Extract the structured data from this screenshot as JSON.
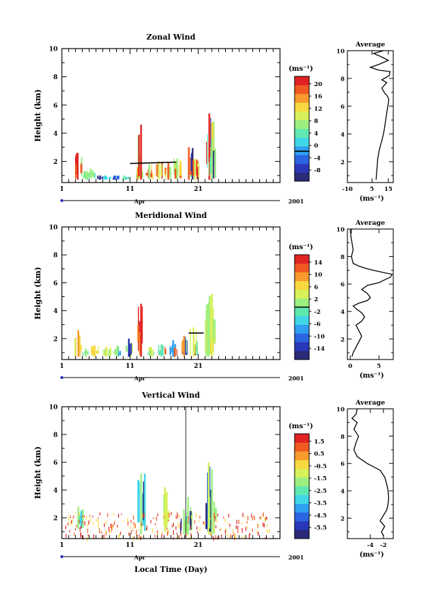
{
  "colors": {
    "colormap": [
      "#2a2a78",
      "#2838b8",
      "#2a64e0",
      "#2fa0f0",
      "#40d6e6",
      "#5fe8b0",
      "#9cf080",
      "#d8f05a",
      "#f8d840",
      "#f89a2e",
      "#f05a22",
      "#e02222"
    ],
    "axis": "#000000",
    "background": "#ffffff"
  },
  "footer": {
    "xlabel": "Local Time (Day)"
  },
  "chart_data": [
    {
      "type": "heatmap",
      "title": "Zonal Wind",
      "ylabel": "Height (km)",
      "ylim": [
        0.5,
        10
      ],
      "yticks": [
        "2",
        "4",
        "6",
        "8",
        "10"
      ],
      "ytick_values": [
        2,
        4,
        6,
        8,
        10
      ],
      "xlim": [
        1,
        33
      ],
      "xticks": [
        "1",
        "11",
        "21"
      ],
      "xtick_values": [
        1,
        11,
        21
      ],
      "month_label": "Apr",
      "year_label": "2001",
      "colorbar": {
        "unit": "(ms⁻¹)",
        "labels": [
          "20",
          "16",
          "12",
          "8",
          "4",
          "0",
          "-4",
          "-8"
        ],
        "black_line_at": 0
      },
      "events": [
        {
          "day": 3.3,
          "h": [
            0.7,
            2.6
          ],
          "v": [
            8,
            16,
            20
          ]
        },
        {
          "day": 4.5,
          "h": [
            0.7,
            1.3
          ],
          "v": [
            4,
            6
          ]
        },
        {
          "day": 5.2,
          "h": [
            0.8,
            1.5
          ],
          "v": [
            4,
            8
          ]
        },
        {
          "day": 6.6,
          "h": [
            0.7,
            1.0
          ],
          "v": [
            -4,
            -8
          ]
        },
        {
          "day": 7.4,
          "h": [
            0.7,
            1.0
          ],
          "v": [
            2
          ]
        },
        {
          "day": 8.8,
          "h": [
            0.7,
            1.0
          ],
          "v": [
            -6,
            -2
          ]
        },
        {
          "day": 10.2,
          "h": [
            0.7,
            1.0
          ],
          "v": [
            2,
            4
          ]
        },
        {
          "day": 12.1,
          "h": [
            0.7,
            1.6
          ],
          "v": [
            6,
            10,
            14
          ]
        },
        {
          "day": 12.6,
          "h": [
            0.7,
            4.6
          ],
          "v": [
            10,
            6,
            14,
            20
          ]
        },
        {
          "day": 13.8,
          "h": [
            0.7,
            1.8
          ],
          "v": [
            12,
            16,
            8
          ]
        },
        {
          "day": 15.2,
          "h": [
            0.7,
            2.0
          ],
          "v": [
            14,
            18,
            10
          ]
        },
        {
          "day": 16.6,
          "h": [
            0.7,
            1.9
          ],
          "v": [
            6,
            12,
            16
          ]
        },
        {
          "day": 17.9,
          "h": [
            0.7,
            2.2
          ],
          "v": [
            12,
            16,
            8
          ]
        },
        {
          "day": 19.6,
          "h": [
            0.7,
            3.0
          ],
          "v": [
            -8,
            -4,
            4,
            16
          ]
        },
        {
          "day": 20.5,
          "h": [
            0.7,
            2.2
          ],
          "v": [
            16,
            20,
            10
          ]
        },
        {
          "day": 22.6,
          "h": [
            0.7,
            5.4
          ],
          "v": [
            -4,
            4,
            8,
            12,
            16,
            20
          ]
        },
        {
          "day": 23.0,
          "h": [
            0.7,
            3.6
          ],
          "v": [
            -8,
            0,
            4,
            8
          ]
        }
      ],
      "black_lines": [
        {
          "x": [
            11,
            17.8
          ],
          "y": [
            1.85,
            1.95
          ]
        }
      ],
      "profile": {
        "title": "Average",
        "xlim": [
          -10,
          18
        ],
        "xticks": [
          "-10",
          "5",
          "15"
        ],
        "xtick_values": [
          -10,
          5,
          15
        ],
        "xlabel": "(ms⁻¹)",
        "x": [
          7.5,
          7.8,
          8.2,
          8.5,
          9.2,
          10.0,
          11.0,
          11.8,
          12.5,
          13.0,
          13.5,
          14.0,
          14.5,
          15.0,
          15.3,
          14.0,
          13.0,
          12.0,
          11.0,
          12.5,
          14.0,
          11.0,
          15.5,
          16.0,
          9.0,
          4.0,
          9.0,
          15.0,
          10.0,
          6.0,
          12.0
        ],
        "y": [
          0.7,
          1.2,
          1.7,
          2.2,
          2.7,
          3.1,
          3.5,
          3.9,
          4.3,
          4.7,
          5.1,
          5.5,
          5.9,
          6.2,
          6.5,
          6.8,
          6.9,
          7.1,
          7.3,
          7.5,
          7.7,
          7.9,
          8.2,
          8.5,
          8.6,
          8.8,
          9.0,
          9.3,
          9.6,
          9.8,
          10.0
        ]
      }
    },
    {
      "type": "heatmap",
      "title": "Meridional Wind",
      "ylabel": "Height (km)",
      "ylim": [
        0.5,
        10
      ],
      "yticks": [
        "2",
        "4",
        "6",
        "8",
        "10"
      ],
      "ytick_values": [
        2,
        4,
        6,
        8,
        10
      ],
      "xlim": [
        1,
        33
      ],
      "xticks": [
        "1",
        "11",
        "21"
      ],
      "xtick_values": [
        1,
        11,
        21
      ],
      "month_label": "Apr",
      "year_label": "2001",
      "colorbar": {
        "unit": "(ms⁻¹)",
        "labels": [
          "14",
          "10",
          "6",
          "2",
          "-2",
          "-6",
          "-10",
          "-14"
        ],
        "black_line_at": 0
      },
      "events": [
        {
          "day": 3.4,
          "h": [
            0.7,
            2.6
          ],
          "v": [
            4,
            6,
            8
          ]
        },
        {
          "day": 4.5,
          "h": [
            0.7,
            1.3
          ],
          "v": [
            -2,
            2
          ]
        },
        {
          "day": 5.8,
          "h": [
            0.7,
            1.5
          ],
          "v": [
            4,
            6
          ]
        },
        {
          "day": 7.5,
          "h": [
            0.7,
            1.4
          ],
          "v": [
            2,
            4
          ]
        },
        {
          "day": 9.1,
          "h": [
            0.7,
            1.5
          ],
          "v": [
            -6,
            2
          ]
        },
        {
          "day": 10.8,
          "h": [
            0.7,
            2.0
          ],
          "v": [
            2,
            4,
            -10
          ]
        },
        {
          "day": 12.6,
          "h": [
            0.7,
            4.5
          ],
          "v": [
            8,
            14,
            12
          ]
        },
        {
          "day": 14.1,
          "h": [
            0.7,
            1.4
          ],
          "v": [
            -6,
            -2,
            4
          ]
        },
        {
          "day": 15.6,
          "h": [
            0.7,
            1.6
          ],
          "v": [
            10,
            -2
          ]
        },
        {
          "day": 17.3,
          "h": [
            0.7,
            1.9
          ],
          "v": [
            6,
            10,
            -6
          ]
        },
        {
          "day": 18.9,
          "h": [
            0.7,
            2.2
          ],
          "v": [
            -10,
            2,
            8
          ]
        },
        {
          "day": 20.3,
          "h": [
            0.7,
            2.8
          ],
          "v": [
            12,
            -2,
            4
          ]
        },
        {
          "day": 22.5,
          "h": [
            0.7,
            4.6
          ],
          "v": [
            6,
            4,
            -6,
            -2,
            2
          ]
        },
        {
          "day": 23.0,
          "h": [
            0.7,
            5.2
          ],
          "v": [
            2,
            6,
            4
          ]
        }
      ],
      "black_lines": [
        {
          "x": [
            19.6,
            21.8
          ],
          "y": [
            2.4,
            2.4
          ]
        }
      ],
      "profile": {
        "title": "Average",
        "xlim": [
          -0.5,
          7.5
        ],
        "xticks": [
          "0",
          "5"
        ],
        "xtick_values": [
          0,
          5
        ],
        "xlabel": "(ms⁻¹)",
        "x": [
          0.3,
          0.5,
          1.0,
          1.5,
          2.0,
          1.5,
          1.0,
          2.0,
          2.5,
          2.0,
          1.0,
          0.5,
          1.5,
          3.0,
          3.5,
          3.0,
          2.0,
          3.0,
          5.0,
          6.0,
          7.0,
          7.3,
          5.0,
          3.0,
          1.5,
          0.5,
          0.2,
          0.5,
          0.3,
          0.1,
          0.2
        ],
        "y": [
          0.7,
          1.0,
          1.4,
          1.8,
          2.2,
          2.6,
          3.0,
          3.3,
          3.6,
          3.9,
          4.2,
          4.4,
          4.6,
          4.8,
          5.0,
          5.3,
          5.6,
          5.9,
          6.1,
          6.3,
          6.5,
          6.7,
          6.9,
          7.1,
          7.3,
          7.5,
          8.0,
          8.5,
          9.0,
          9.5,
          10.0
        ]
      }
    },
    {
      "type": "heatmap",
      "title": "Vertical Wind",
      "ylabel": "Height (km)",
      "ylim": [
        0.5,
        10
      ],
      "yticks": [
        "2",
        "4",
        "6",
        "8",
        "10"
      ],
      "ytick_values": [
        2,
        4,
        6,
        8,
        10
      ],
      "xlim": [
        1,
        33
      ],
      "xticks": [
        "1",
        "11",
        "21"
      ],
      "xtick_values": [
        1,
        11,
        21
      ],
      "month_label": "Apr",
      "year_label": "2001",
      "xlabel": "Local Time (Day)",
      "colorbar": {
        "unit": "(ms⁻¹)",
        "labels": [
          "1.5",
          "0.5",
          "-0.5",
          "-1.5",
          "-2.5",
          "-3.5",
          "-4.5",
          "-5.5"
        ],
        "black_line_at": null
      },
      "events": [
        {
          "day": 3.4,
          "h": [
            1.2,
            2.8
          ],
          "v": [
            -4,
            -3,
            -2
          ]
        },
        {
          "day": 12.6,
          "h": [
            0.8,
            5.2
          ],
          "v": [
            -5,
            -3,
            -1.5
          ]
        },
        {
          "day": 16.1,
          "h": [
            1.0,
            4.2
          ],
          "v": [
            -2,
            -1
          ]
        },
        {
          "day": 18.9,
          "h": [
            0.8,
            2.6
          ],
          "v": [
            -5,
            -3,
            -2
          ]
        },
        {
          "day": 19.5,
          "h": [
            0.8,
            3.5
          ],
          "v": [
            -5.5,
            -4,
            -2
          ]
        },
        {
          "day": 22.5,
          "h": [
            0.8,
            6.0
          ],
          "v": [
            -5,
            -4,
            -2,
            -1
          ]
        },
        {
          "day": 23.0,
          "h": [
            0.8,
            5.5
          ],
          "v": [
            -5,
            -3,
            -1.5
          ]
        }
      ],
      "speckle_band": {
        "h": [
          0.6,
          2.4
        ],
        "v": [
          0.5,
          1.0,
          -0.5
        ]
      },
      "black_lines": [
        {
          "x": [
            19.2,
            19.2
          ],
          "y": [
            0.5,
            10
          ]
        }
      ],
      "profile": {
        "title": "Average",
        "xlim": [
          -7.5,
          -0.5
        ],
        "xticks": [
          "-4",
          "-2"
        ],
        "xtick_values": [
          -4,
          -2
        ],
        "xlabel": "(ms⁻¹)",
        "x": [
          -2.0,
          -2.3,
          -1.8,
          -2.5,
          -2.0,
          -1.5,
          -1.3,
          -1.2,
          -1.3,
          -1.5,
          -1.8,
          -2.5,
          -4.5,
          -6.0,
          -6.5,
          -6.2,
          -5.8,
          -6.5,
          -6.0,
          -6.8,
          -6.2,
          -6.0
        ],
        "y": [
          0.7,
          1.0,
          1.4,
          1.8,
          2.2,
          2.6,
          3.0,
          3.5,
          4.0,
          4.5,
          5.0,
          5.5,
          6.0,
          6.5,
          7.0,
          7.5,
          8.0,
          8.5,
          9.0,
          9.3,
          9.6,
          10.0
        ]
      }
    }
  ]
}
